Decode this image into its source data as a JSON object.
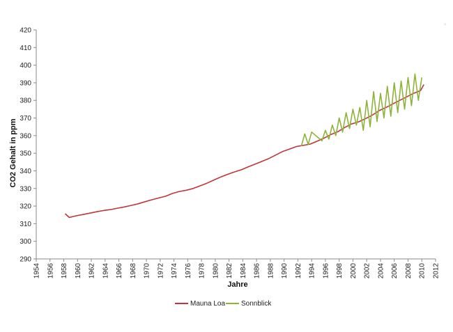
{
  "chart_data": {
    "type": "line",
    "title": "",
    "xlabel": "Jahre",
    "ylabel": "CO2 Gehalt in ppm",
    "xlim": [
      1954,
      2012
    ],
    "ylim": [
      290,
      420
    ],
    "x_ticks": [
      "1954",
      "1956",
      "1958",
      "1960",
      "1962",
      "1964",
      "1966",
      "1968",
      "1970",
      "1972",
      "1974",
      "1976",
      "1978",
      "1980",
      "1982",
      "1984",
      "1986",
      "1988",
      "1990",
      "1992",
      "1994",
      "1996",
      "1998",
      "2000",
      "2002",
      "2004",
      "2006",
      "2008",
      "2010",
      "2012"
    ],
    "y_ticks": [
      "290",
      "300",
      "310",
      "320",
      "330",
      "340",
      "350",
      "360",
      "370",
      "380",
      "390",
      "400",
      "410",
      "420"
    ],
    "grid": false,
    "legend_position": "bottom",
    "series": [
      {
        "name": "Mauna Loa",
        "color": "#c0343a",
        "x": [
          1958.2,
          1958.8,
          1959.8,
          1960.8,
          1961.8,
          1962.8,
          1963.8,
          1964.8,
          1965.8,
          1966.8,
          1967.8,
          1968.8,
          1969.8,
          1970.8,
          1971.8,
          1972.8,
          1973.8,
          1974.8,
          1975.8,
          1976.8,
          1977.8,
          1978.8,
          1979.8,
          1980.8,
          1981.8,
          1982.8,
          1983.8,
          1984.8,
          1985.8,
          1986.8,
          1987.8,
          1988.8,
          1989.8,
          1990.8,
          1991.8,
          1992.8,
          1993.8,
          1994.8,
          1995.8,
          1996.8,
          1997.8,
          1998.8,
          1999.8,
          2000.8,
          2001.8,
          2002.8,
          2003.8,
          2004.8,
          2005.8,
          2006.8,
          2007.8,
          2008.8,
          2009.8,
          2010.3
        ],
        "y": [
          315.7,
          313.5,
          314.5,
          315.2,
          316.0,
          316.8,
          317.5,
          318.0,
          318.8,
          319.5,
          320.4,
          321.3,
          322.5,
          323.6,
          324.6,
          325.6,
          327.2,
          328.3,
          329.0,
          330.0,
          331.5,
          333.0,
          334.8,
          336.5,
          338.0,
          339.4,
          340.6,
          342.3,
          343.8,
          345.4,
          347.0,
          349.0,
          351.0,
          352.4,
          353.8,
          354.5,
          355.2,
          356.8,
          358.6,
          360.6,
          362.2,
          364.6,
          366.6,
          367.8,
          369.6,
          371.6,
          374.2,
          376.0,
          378.0,
          380.0,
          382.0,
          384.0,
          385.5,
          389.0
        ]
      },
      {
        "name": "Sonnblick",
        "color": "#8db33a",
        "x": [
          1992.5,
          1993.0,
          1993.5,
          1994.0,
          1995.5,
          1996.0,
          1996.5,
          1997.0,
          1997.5,
          1998.0,
          1998.5,
          1999.0,
          1999.5,
          2000.0,
          2000.5,
          2001.0,
          2001.5,
          2002.0,
          2002.5,
          2003.0,
          2003.5,
          2004.0,
          2004.5,
          2005.0,
          2005.5,
          2006.0,
          2006.5,
          2007.0,
          2007.5,
          2008.0,
          2008.5,
          2009.0,
          2009.5,
          2010.0
        ],
        "y": [
          354.0,
          361.0,
          355.0,
          362.0,
          357.0,
          363.0,
          358.0,
          366.0,
          360.0,
          370.0,
          362.0,
          373.0,
          364.0,
          375.0,
          366.0,
          376.0,
          363.0,
          380.0,
          365.0,
          385.0,
          368.0,
          384.0,
          370.0,
          388.0,
          371.0,
          390.0,
          373.0,
          391.0,
          375.0,
          393.0,
          377.0,
          395.0,
          380.0,
          393.0
        ]
      }
    ]
  }
}
